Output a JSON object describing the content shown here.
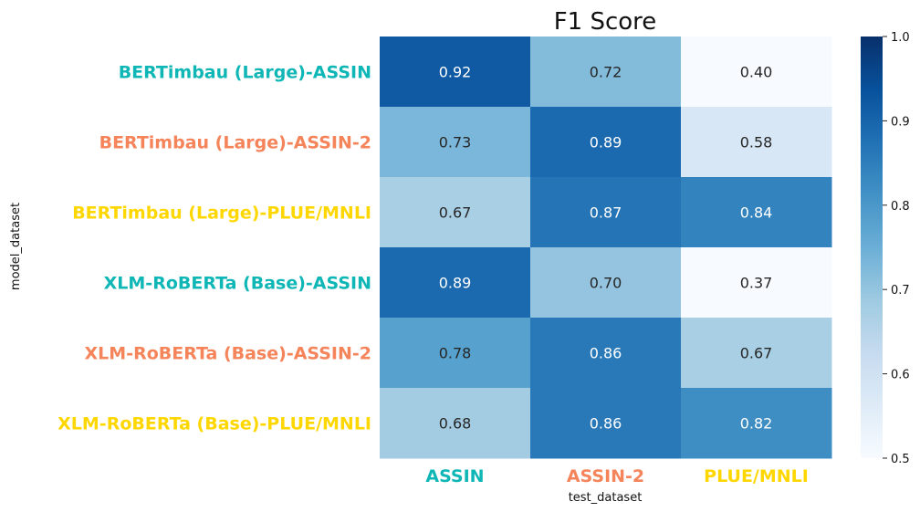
{
  "chart_data": {
    "type": "heatmap",
    "title": "F1 Score",
    "xlabel": "test_dataset",
    "ylabel": "model_dataset",
    "columns": [
      {
        "label": "ASSIN",
        "color": "#0fb6b6"
      },
      {
        "label": "ASSIN-2",
        "color": "#f5845a"
      },
      {
        "label": "PLUE/MNLI",
        "color": "#ffd700"
      }
    ],
    "rows": [
      {
        "label": "BERTimbau (Large)-ASSIN",
        "color": "#0fb6b6"
      },
      {
        "label": "BERTimbau (Large)-ASSIN-2",
        "color": "#f5845a"
      },
      {
        "label": "BERTimbau (Large)-PLUE/MNLI",
        "color": "#ffd700"
      },
      {
        "label": "XLM-RoBERTa (Base)-ASSIN",
        "color": "#0fb6b6"
      },
      {
        "label": "XLM-RoBERTa (Base)-ASSIN-2",
        "color": "#f5845a"
      },
      {
        "label": "XLM-RoBERTa (Base)-PLUE/MNLI",
        "color": "#ffd700"
      }
    ],
    "values": [
      [
        0.92,
        0.72,
        0.4
      ],
      [
        0.73,
        0.89,
        0.58
      ],
      [
        0.67,
        0.87,
        0.84
      ],
      [
        0.89,
        0.7,
        0.37
      ],
      [
        0.78,
        0.86,
        0.67
      ],
      [
        0.68,
        0.86,
        0.82
      ]
    ],
    "value_labels": [
      [
        "0.92",
        "0.72",
        "0.40"
      ],
      [
        "0.73",
        "0.89",
        "0.58"
      ],
      [
        "0.67",
        "0.87",
        "0.84"
      ],
      [
        "0.89",
        "0.70",
        "0.37"
      ],
      [
        "0.78",
        "0.86",
        "0.67"
      ],
      [
        "0.68",
        "0.86",
        "0.82"
      ]
    ],
    "colorscale": "Blues",
    "vmin": 0.5,
    "vmax": 1.0,
    "colorbar_ticks": [
      "0.5",
      "0.6",
      "0.7",
      "0.8",
      "0.9",
      "1.0"
    ]
  }
}
